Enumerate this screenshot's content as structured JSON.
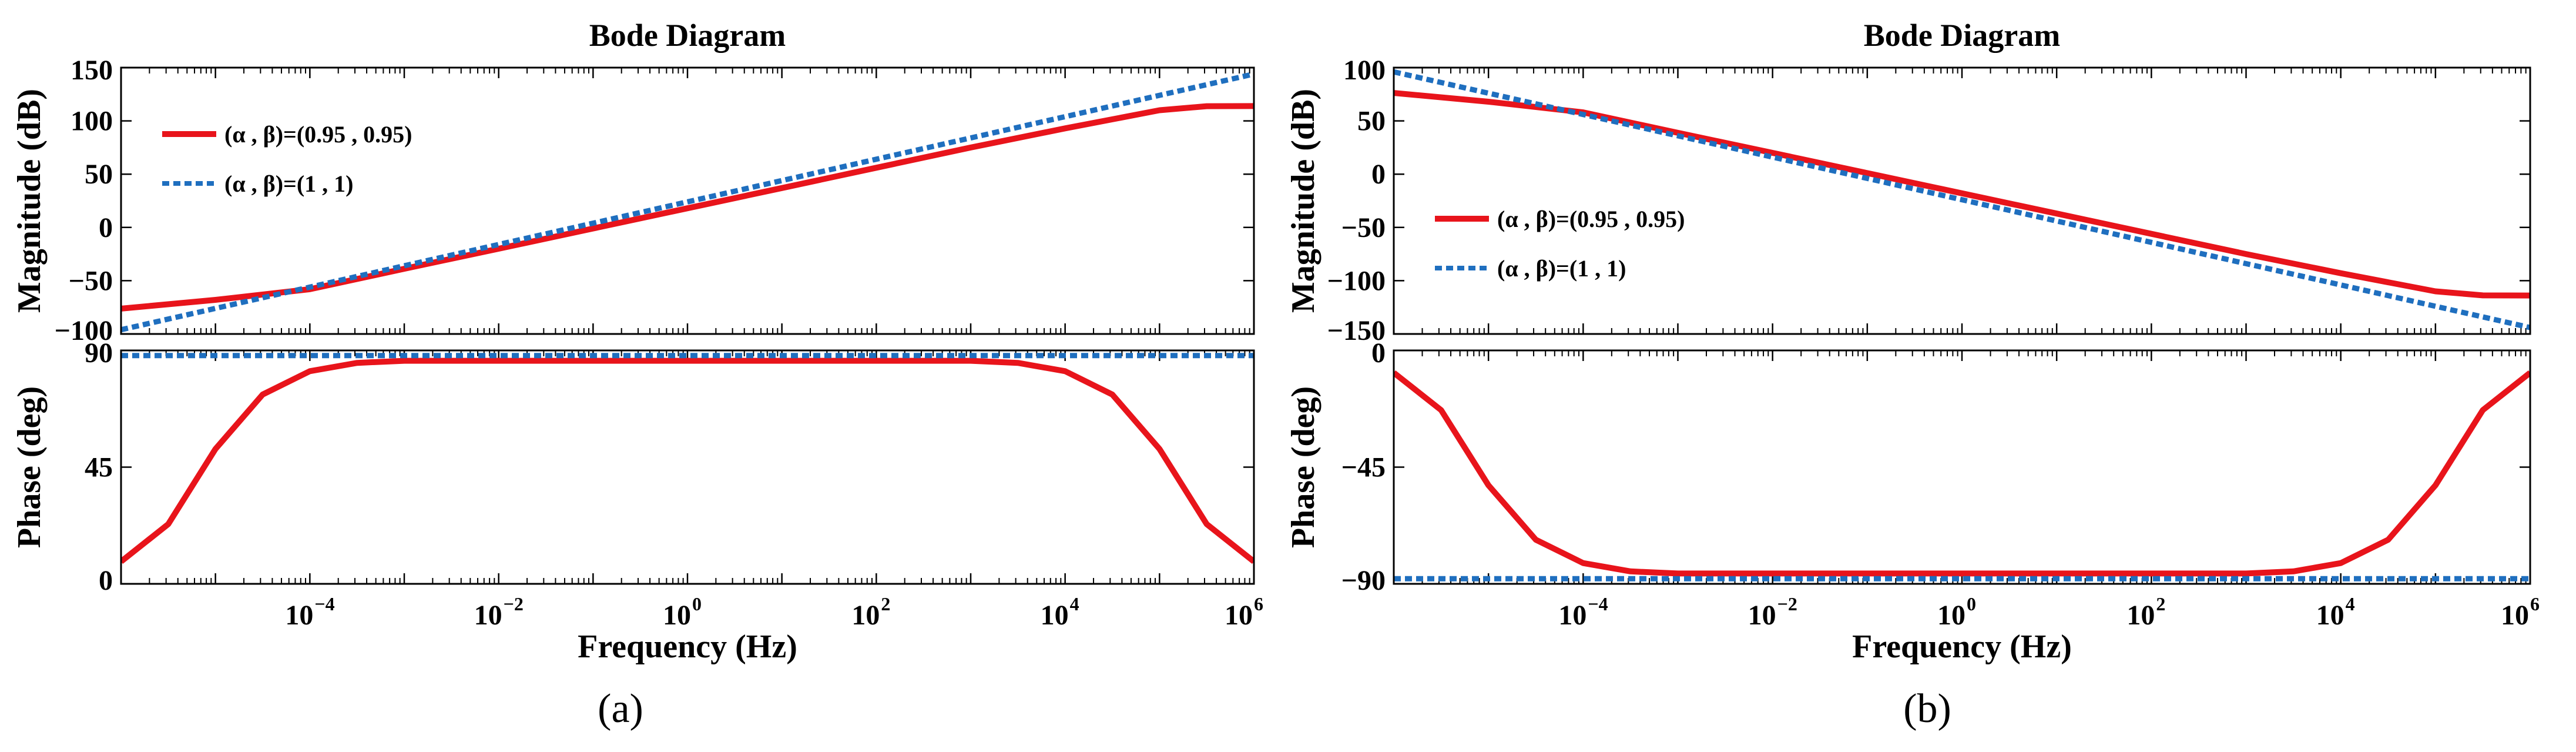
{
  "chart_data": [
    {
      "panel_label": "(a)",
      "panel_letter": "a",
      "type": "line",
      "title": "Bode Diagram",
      "xlabel": "Frequency (Hz)",
      "x_scale": "log",
      "xlim_exp": [
        -6,
        6
      ],
      "x_ticks": [
        {
          "base": "10",
          "exp": "−4",
          "value_exp": -4
        },
        {
          "base": "10",
          "exp": "−2",
          "value_exp": -2
        },
        {
          "base": "10",
          "exp": "0",
          "value_exp": 0
        },
        {
          "base": "10",
          "exp": "2",
          "value_exp": 2
        },
        {
          "base": "10",
          "exp": "4",
          "value_exp": 4
        },
        {
          "base": "10",
          "exp": "6",
          "value_exp": 6
        }
      ],
      "magnitude": {
        "ylabel": "Magnitude (dB)",
        "ylim": [
          -100,
          150
        ],
        "y_ticks": [
          "150",
          "100",
          "50",
          "0",
          "−50",
          "−100"
        ],
        "y_tick_values": [
          150,
          100,
          50,
          0,
          -50,
          -100
        ],
        "series": [
          {
            "name": "(α , β)=(0.95 , 0.95)",
            "color": "#e8141b",
            "dash": "solid",
            "points": [
              [
                -6,
                -76.2
              ],
              [
                -5,
                -68
              ],
              [
                -4,
                -58
              ],
              [
                -3,
                -38.8
              ],
              [
                -2,
                -20
              ],
              [
                -1,
                -1
              ],
              [
                0,
                18
              ],
              [
                1,
                37
              ],
              [
                2,
                56
              ],
              [
                3,
                75
              ],
              [
                4,
                93
              ],
              [
                5,
                110
              ],
              [
                5.5,
                113.8
              ],
              [
                6,
                113.9
              ]
            ]
          },
          {
            "name": "(α , β)=(1 , 1)",
            "color": "#1f6fbf",
            "dash": "dotted",
            "points": [
              [
                -6,
                -96
              ],
              [
                -5,
                -76
              ],
              [
                -4,
                -56
              ],
              [
                -3,
                -36
              ],
              [
                -2,
                -16
              ],
              [
                -1,
                4
              ],
              [
                0,
                24
              ],
              [
                1,
                44
              ],
              [
                2,
                64
              ],
              [
                3,
                84
              ],
              [
                4,
                104
              ],
              [
                5,
                124
              ],
              [
                6,
                144
              ]
            ]
          }
        ]
      },
      "phase": {
        "ylabel": "Phase (deg)",
        "ylim": [
          0,
          90
        ],
        "y_ticks": [
          "90",
          "45",
          "0"
        ],
        "y_tick_values": [
          90,
          45,
          0
        ],
        "series": [
          {
            "name": "(α , β)=(0.95 , 0.95)",
            "color": "#e8141b",
            "dash": "solid",
            "points": [
              [
                -6,
                8.6
              ],
              [
                -5.5,
                23
              ],
              [
                -5,
                52
              ],
              [
                -4.5,
                73
              ],
              [
                -4,
                82
              ],
              [
                -3.5,
                85.2
              ],
              [
                -3,
                86
              ],
              [
                -2,
                86
              ],
              [
                -1,
                86
              ],
              [
                0,
                86
              ],
              [
                1,
                86
              ],
              [
                2,
                86
              ],
              [
                3,
                86
              ],
              [
                3.5,
                85.2
              ],
              [
                4,
                82
              ],
              [
                4.5,
                73
              ],
              [
                5,
                52
              ],
              [
                5.5,
                23
              ],
              [
                6,
                8.6
              ]
            ]
          },
          {
            "name": "(α , β)=(1 , 1)",
            "color": "#1f6fbf",
            "dash": "dotted",
            "points": [
              [
                -6,
                88
              ],
              [
                6,
                88
              ]
            ]
          }
        ]
      },
      "legend": [
        {
          "label": "(α , β)=(0.95 , 0.95)",
          "color": "#e8141b",
          "dash": "solid"
        },
        {
          "label": "(α , β)=(1 , 1)",
          "color": "#1f6fbf",
          "dash": "dotted"
        }
      ],
      "legend_position": "top-left"
    },
    {
      "panel_label": "(b)",
      "panel_letter": "b",
      "type": "line",
      "title": "Bode Diagram",
      "xlabel": "Frequency (Hz)",
      "x_scale": "log",
      "xlim_exp": [
        -6,
        6
      ],
      "x_ticks": [
        {
          "base": "10",
          "exp": "−4",
          "value_exp": -4
        },
        {
          "base": "10",
          "exp": "−2",
          "value_exp": -2
        },
        {
          "base": "10",
          "exp": "0",
          "value_exp": 0
        },
        {
          "base": "10",
          "exp": "2",
          "value_exp": 2
        },
        {
          "base": "10",
          "exp": "4",
          "value_exp": 4
        },
        {
          "base": "10",
          "exp": "6",
          "value_exp": 6
        }
      ],
      "magnitude": {
        "ylabel": "Magnitude (dB)",
        "ylim": [
          -150,
          100
        ],
        "y_ticks": [
          "100",
          "50",
          "0",
          "−50",
          "−100",
          "−150"
        ],
        "y_tick_values": [
          100,
          50,
          0,
          -50,
          -100,
          -150
        ],
        "series": [
          {
            "name": "(α , β)=(0.95 , 0.95)",
            "color": "#e8141b",
            "dash": "solid",
            "points": [
              [
                -6,
                76.2
              ],
              [
                -5,
                68
              ],
              [
                -4,
                58
              ],
              [
                -3,
                38.8
              ],
              [
                -2,
                20
              ],
              [
                -1,
                1
              ],
              [
                0,
                -18
              ],
              [
                1,
                -37
              ],
              [
                2,
                -56
              ],
              [
                3,
                -75
              ],
              [
                4,
                -93
              ],
              [
                5,
                -110
              ],
              [
                5.5,
                -113.8
              ],
              [
                6,
                -113.9
              ]
            ]
          },
          {
            "name": "(α , β)=(1 , 1)",
            "color": "#1f6fbf",
            "dash": "dotted",
            "points": [
              [
                -6,
                96
              ],
              [
                -5,
                76
              ],
              [
                -4,
                56
              ],
              [
                -3,
                36
              ],
              [
                -2,
                16
              ],
              [
                -1,
                -4
              ],
              [
                0,
                -24
              ],
              [
                1,
                -44
              ],
              [
                2,
                -64
              ],
              [
                3,
                -84
              ],
              [
                4,
                -104
              ],
              [
                5,
                -124
              ],
              [
                6,
                -144
              ]
            ]
          }
        ]
      },
      "phase": {
        "ylabel": "Phase (deg)",
        "ylim": [
          -90,
          0
        ],
        "y_ticks": [
          "0",
          "−45",
          "−90"
        ],
        "y_tick_values": [
          0,
          -45,
          -90
        ],
        "series": [
          {
            "name": "(α , β)=(0.95 , 0.95)",
            "color": "#e8141b",
            "dash": "solid",
            "points": [
              [
                -6,
                -8.6
              ],
              [
                -5.5,
                -23
              ],
              [
                -5,
                -52
              ],
              [
                -4.5,
                -73
              ],
              [
                -4,
                -82
              ],
              [
                -3.5,
                -85.2
              ],
              [
                -3,
                -86
              ],
              [
                -2,
                -86
              ],
              [
                -1,
                -86
              ],
              [
                0,
                -86
              ],
              [
                1,
                -86
              ],
              [
                2,
                -86
              ],
              [
                3,
                -86
              ],
              [
                3.5,
                -85.2
              ],
              [
                4,
                -82
              ],
              [
                4.5,
                -73
              ],
              [
                5,
                -52
              ],
              [
                5.5,
                -23
              ],
              [
                6,
                -8.6
              ]
            ]
          },
          {
            "name": "(α , β)=(1 , 1)",
            "color": "#1f6fbf",
            "dash": "dotted",
            "points": [
              [
                -6,
                -88
              ],
              [
                6,
                -88
              ]
            ]
          }
        ]
      },
      "legend": [
        {
          "label": "(α , β)=(0.95 , 0.95)",
          "color": "#e8141b",
          "dash": "solid"
        },
        {
          "label": "(α , β)=(1 , 1)",
          "color": "#1f6fbf",
          "dash": "dotted"
        }
      ],
      "legend_position": "middle-left"
    }
  ]
}
